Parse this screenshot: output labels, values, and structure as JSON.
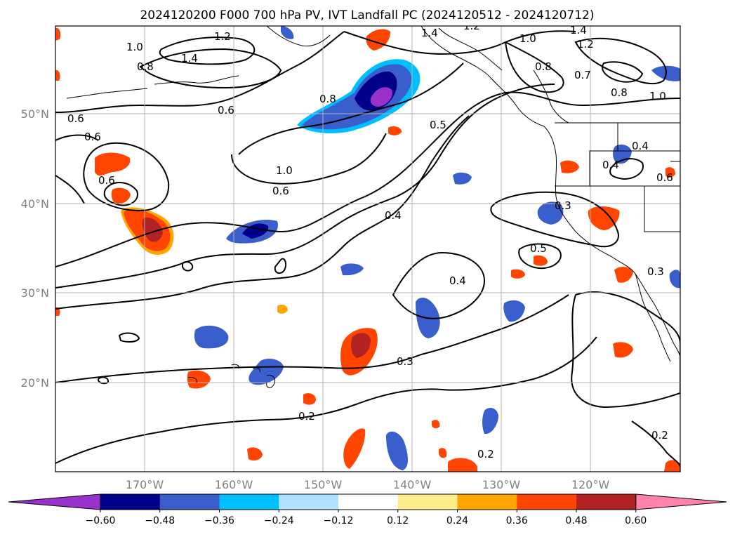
{
  "title": "2024120200 F000 700 hPa PV, IVT Landfall PC (2024120512 - 2024120712)",
  "lat_labels": [
    "50°N",
    "40°N",
    "30°N",
    "20°N"
  ],
  "lon_labels": [
    "170°W",
    "160°W",
    "150°W",
    "140°W",
    "130°W",
    "120°W"
  ],
  "colorbar": {
    "ticks": [
      "−0.60",
      "−0.48",
      "−0.36",
      "−0.24",
      "−0.12",
      "0.12",
      "0.24",
      "0.36",
      "0.48",
      "0.60"
    ],
    "colors": [
      "#9932cc",
      "#00008b",
      "#3a5fcd",
      "#00bfff",
      "#b0e2ff",
      "#ffffff",
      "#ffec8b",
      "#ffa500",
      "#ff4500",
      "#b22222",
      "#ff82ab"
    ]
  },
  "contour_labels": [
    "0.6",
    "0.6",
    "0.6",
    "0.6",
    "0.7",
    "0.8",
    "0.8",
    "0.8",
    "0.8",
    "1.0",
    "1.0",
    "1.0",
    "1.0",
    "1.2",
    "1.2",
    "1.2",
    "1.4",
    "1.4",
    "1.4",
    "0.5",
    "0.5",
    "0.4",
    "0.4",
    "0.4",
    "0.4",
    "0.3",
    "0.3",
    "0.3",
    "0.2",
    "0.2",
    "0.2",
    "0.6",
    "0.6"
  ],
  "map": {
    "extent_lon": [
      -180,
      -110
    ],
    "extent_lat": [
      10,
      60
    ],
    "contour_field": "700 hPa PV",
    "shading_field": "IVT Landfall PC"
  }
}
